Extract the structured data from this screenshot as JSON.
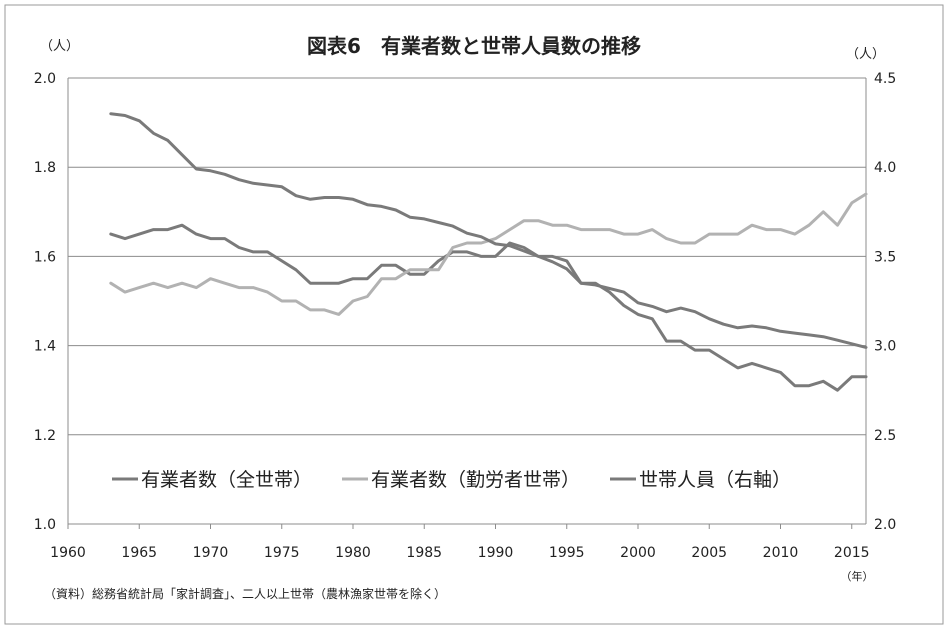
{
  "chart_data": {
    "type": "line",
    "title": "図表6　有業者数と世帯人員数の推移",
    "left_axis": {
      "unit": "（人）",
      "range": [
        1.0,
        2.0
      ],
      "ticks": [
        "1.0",
        "1.2",
        "1.4",
        "1.6",
        "1.8",
        "2.0"
      ]
    },
    "right_axis": {
      "unit": "（人）",
      "range": [
        2.0,
        4.5
      ],
      "ticks": [
        "2.0",
        "2.5",
        "3.0",
        "3.5",
        "4.0",
        "4.5"
      ]
    },
    "x_axis": {
      "unit": "（年）",
      "range": [
        1960,
        2016
      ],
      "ticks": [
        "1960",
        "1965",
        "1970",
        "1975",
        "1980",
        "1985",
        "1990",
        "1995",
        "2000",
        "2005",
        "2010",
        "2015"
      ]
    },
    "grid": "horizontal",
    "legend_position": "bottom-left inside plot",
    "x": [
      1963,
      1964,
      1965,
      1966,
      1967,
      1968,
      1969,
      1970,
      1971,
      1972,
      1973,
      1974,
      1975,
      1976,
      1977,
      1978,
      1979,
      1980,
      1981,
      1982,
      1983,
      1984,
      1985,
      1986,
      1987,
      1988,
      1989,
      1990,
      1991,
      1992,
      1993,
      1994,
      1995,
      1996,
      1997,
      1998,
      1999,
      2000,
      2001,
      2002,
      2003,
      2004,
      2005,
      2006,
      2007,
      2008,
      2009,
      2010,
      2011,
      2012,
      2013,
      2014,
      2015,
      2016
    ],
    "series": [
      {
        "name": "有業者数（全世帯）",
        "axis": "left",
        "color": "#7a7a7a",
        "values": [
          1.65,
          1.64,
          1.65,
          1.66,
          1.66,
          1.67,
          1.65,
          1.64,
          1.64,
          1.62,
          1.61,
          1.61,
          1.59,
          1.57,
          1.54,
          1.54,
          1.54,
          1.55,
          1.55,
          1.58,
          1.58,
          1.56,
          1.56,
          1.59,
          1.61,
          1.61,
          1.6,
          1.6,
          1.63,
          1.62,
          1.6,
          1.6,
          1.59,
          1.54,
          1.54,
          1.52,
          1.49,
          1.47,
          1.46,
          1.41,
          1.41,
          1.39,
          1.39,
          1.37,
          1.35,
          1.36,
          1.35,
          1.34,
          1.31,
          1.31,
          1.32,
          1.3,
          1.33,
          1.33
        ]
      },
      {
        "name": "有業者数（勤労者世帯）",
        "axis": "left",
        "color": "#b2b2b2",
        "values": [
          1.54,
          1.52,
          1.53,
          1.54,
          1.53,
          1.54,
          1.53,
          1.55,
          1.54,
          1.53,
          1.53,
          1.52,
          1.5,
          1.5,
          1.48,
          1.48,
          1.47,
          1.5,
          1.51,
          1.55,
          1.55,
          1.57,
          1.57,
          1.57,
          1.62,
          1.63,
          1.63,
          1.64,
          1.66,
          1.68,
          1.68,
          1.67,
          1.67,
          1.66,
          1.66,
          1.66,
          1.65,
          1.65,
          1.66,
          1.64,
          1.63,
          1.63,
          1.65,
          1.65,
          1.65,
          1.67,
          1.66,
          1.66,
          1.65,
          1.67,
          1.7,
          1.67,
          1.72,
          1.74
        ]
      },
      {
        "name": "世帯人員（右軸）",
        "axis": "right",
        "color": "#7a7a7a",
        "values": [
          4.3,
          4.29,
          4.26,
          4.19,
          4.15,
          4.07,
          3.99,
          3.98,
          3.96,
          3.93,
          3.91,
          3.9,
          3.89,
          3.84,
          3.82,
          3.83,
          3.83,
          3.82,
          3.79,
          3.78,
          3.76,
          3.72,
          3.71,
          3.69,
          3.67,
          3.63,
          3.61,
          3.57,
          3.56,
          3.53,
          3.5,
          3.47,
          3.43,
          3.35,
          3.34,
          3.32,
          3.3,
          3.24,
          3.22,
          3.19,
          3.21,
          3.19,
          3.15,
          3.12,
          3.1,
          3.11,
          3.1,
          3.08,
          3.07,
          3.06,
          3.05,
          3.03,
          3.01,
          2.99
        ]
      }
    ],
    "source_note": "（資料）総務省統計局「家計調査」、二人以上世帯（農林漁家世帯を除く）"
  }
}
